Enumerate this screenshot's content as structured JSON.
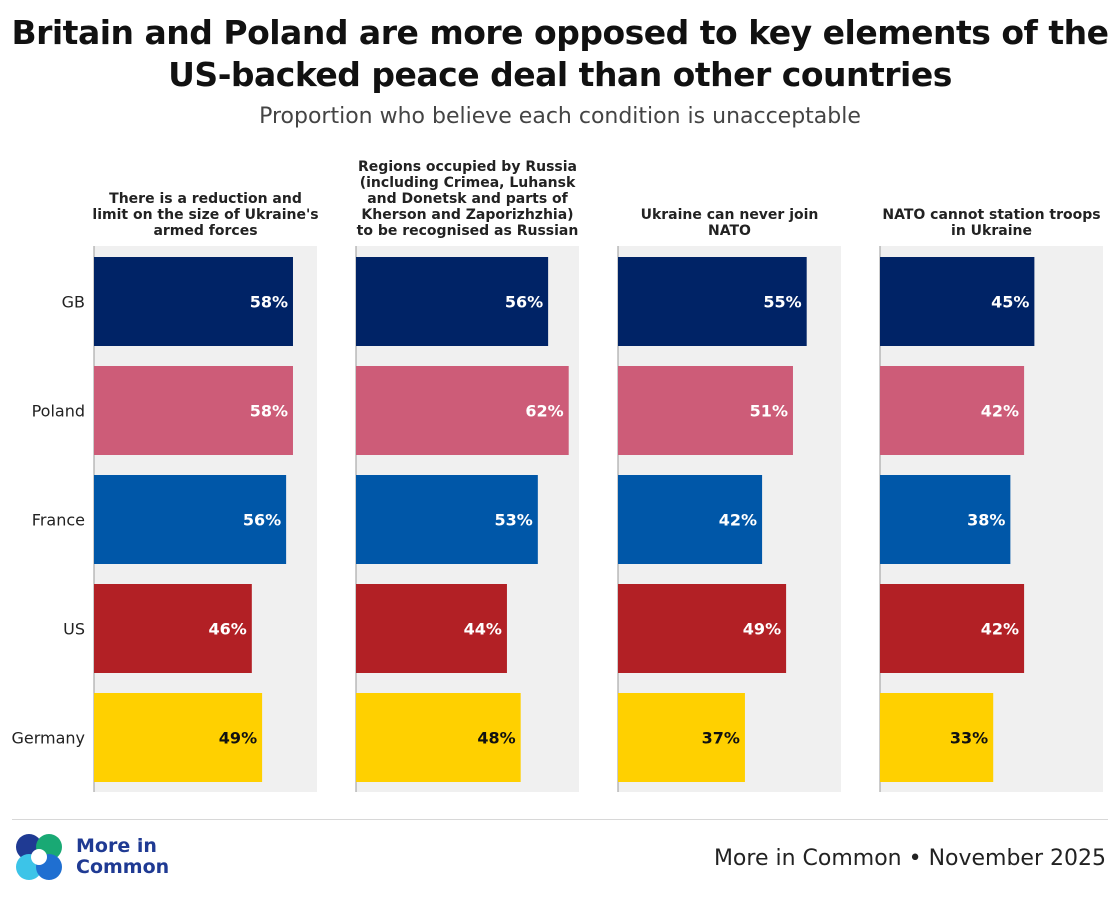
{
  "header": {
    "title": "Britain and Poland are more opposed to key elements of the US-backed peace deal than other countries",
    "subtitle": "Proportion who believe each condition is unacceptable"
  },
  "chart_data": {
    "type": "bar",
    "orientation": "horizontal",
    "title": "Britain and Poland are more opposed to key elements of the US-backed peace deal than other countries",
    "subtitle": "Proportion who believe each condition is unacceptable",
    "categories": [
      "GB",
      "Poland",
      "France",
      "US",
      "Germany"
    ],
    "colors": [
      "#002366",
      "#cd5c78",
      "#0057a8",
      "#b22025",
      "#ffd000"
    ],
    "label_colors": [
      "#ffffff",
      "#ffffff",
      "#ffffff",
      "#ffffff",
      "#111111"
    ],
    "panel_background": "#f0f0f0",
    "xlim": [
      0,
      65
    ],
    "panels": [
      {
        "title_lines": [
          "There is a reduction and",
          "limit on the size of Ukraine's",
          "armed forces"
        ],
        "values": [
          58,
          58,
          56,
          46,
          49
        ],
        "labels": [
          "58%",
          "58%",
          "56%",
          "46%",
          "49%"
        ]
      },
      {
        "title_lines": [
          "Regions occupied by Russia",
          "(including Crimea, Luhansk",
          "and Donetsk and parts of",
          "Kherson and Zaporizhzhia)",
          "to be recognised as Russian"
        ],
        "values": [
          56,
          62,
          53,
          44,
          48
        ],
        "labels": [
          "56%",
          "62%",
          "53%",
          "44%",
          "48%"
        ]
      },
      {
        "title_lines": [
          "Ukraine can never join",
          "NATO"
        ],
        "values": [
          55,
          51,
          42,
          49,
          37
        ],
        "labels": [
          "55%",
          "51%",
          "42%",
          "49%",
          "37%"
        ]
      },
      {
        "title_lines": [
          "NATO cannot station troops",
          "in Ukraine"
        ],
        "values": [
          45,
          42,
          38,
          42,
          33
        ],
        "labels": [
          "45%",
          "42%",
          "38%",
          "42%",
          "33%"
        ]
      }
    ]
  },
  "footer": {
    "brand_line1": "More in",
    "brand_line2": "Common",
    "brand_colors": [
      "#1f3a93",
      "#19a974",
      "#3cc4e8",
      "#1f6fd1"
    ],
    "source": "More in Common • November 2025"
  }
}
